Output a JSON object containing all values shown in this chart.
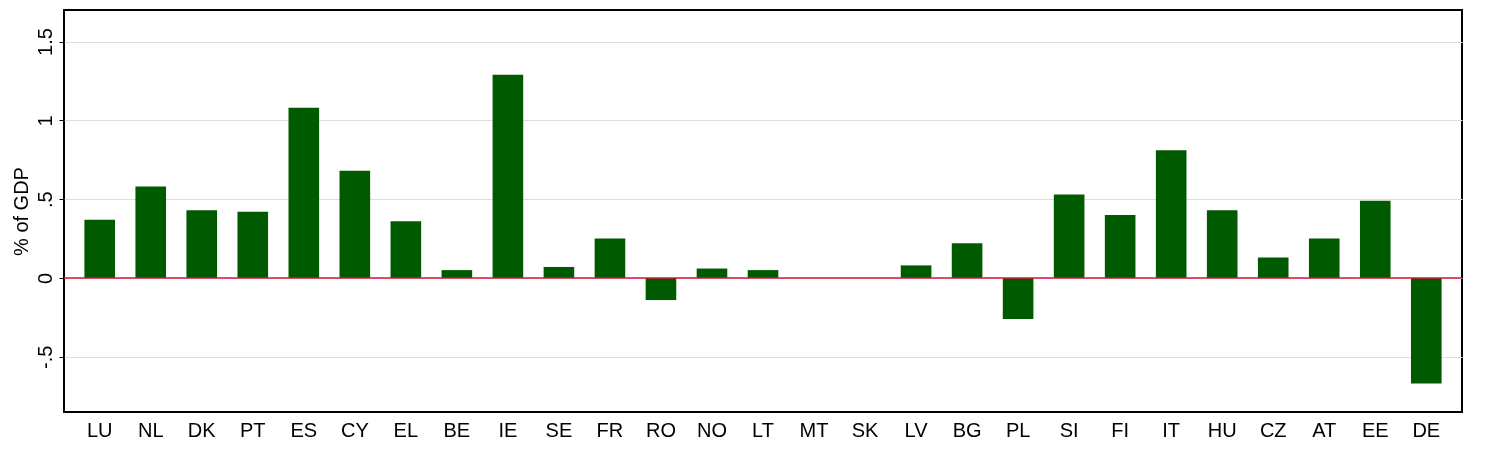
{
  "chart_data": {
    "type": "bar",
    "ylabel": "% of GDP",
    "categories": [
      "LU",
      "NL",
      "DK",
      "PT",
      "ES",
      "CY",
      "EL",
      "BE",
      "IE",
      "SE",
      "FR",
      "RO",
      "NO",
      "LT",
      "MT",
      "SK",
      "LV",
      "BG",
      "PL",
      "SI",
      "FI",
      "IT",
      "HU",
      "CZ",
      "AT",
      "EE",
      "DE"
    ],
    "values": [
      0.37,
      0.58,
      0.43,
      0.42,
      1.08,
      0.68,
      0.36,
      0.05,
      1.29,
      0.07,
      0.25,
      -0.14,
      0.06,
      0.05,
      0,
      0,
      0.08,
      0.22,
      -0.26,
      0.53,
      0.4,
      0.81,
      0.43,
      0.13,
      0.25,
      0.49,
      -0.67
    ],
    "color": "#005a00",
    "ylim": [
      -0.85,
      1.7
    ],
    "yticks": [
      {
        "value": -0.5,
        "label": "-.5"
      },
      0,
      {
        "value": 0.5,
        "label": ".5"
      },
      1,
      1.5
    ],
    "grid": "y",
    "ref_lines": [
      {
        "axis": "y",
        "value": 0,
        "color": "#dc143c"
      }
    ]
  }
}
